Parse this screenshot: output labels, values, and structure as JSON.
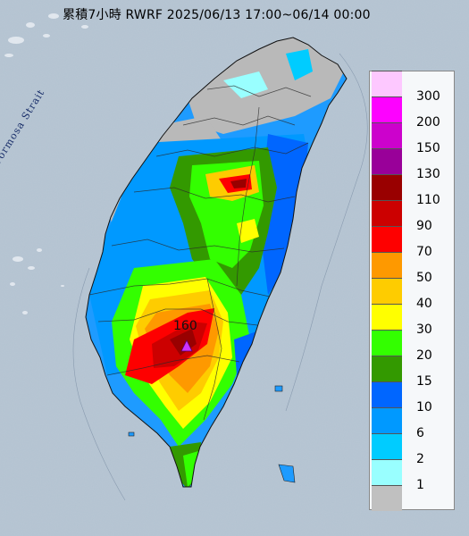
{
  "header": {
    "title": "累積7小時 RWRF 2025/06/13 17:00~06/14 00:00"
  },
  "map": {
    "sea_label": "Formosa Strait",
    "peak": {
      "value": "160",
      "marker": "triangle-marker-icon",
      "color": "#cc33ff"
    }
  },
  "legend": {
    "items": [
      {
        "label": "300",
        "color": "#fdc8ff"
      },
      {
        "label": "200",
        "color": "#fd02ff"
      },
      {
        "label": "150",
        "color": "#cc02cc"
      },
      {
        "label": "130",
        "color": "#990099"
      },
      {
        "label": "110",
        "color": "#990000"
      },
      {
        "label": "90",
        "color": "#cc0000"
      },
      {
        "label": "70",
        "color": "#fe0000"
      },
      {
        "label": "50",
        "color": "#fe9900"
      },
      {
        "label": "40",
        "color": "#fecc00"
      },
      {
        "label": "30",
        "color": "#ffff00"
      },
      {
        "label": "20",
        "color": "#33ff00"
      },
      {
        "label": "15",
        "color": "#339900"
      },
      {
        "label": "10",
        "color": "#0066ff"
      },
      {
        "label": "6",
        "color": "#0099ff"
      },
      {
        "label": "2",
        "color": "#00ccff"
      },
      {
        "label": "1",
        "color": "#99ffff"
      },
      {
        "label": "",
        "color": "#c0c0c0"
      }
    ]
  },
  "colors": {
    "sea": "#aebfcf",
    "land": "#9dbd8a"
  }
}
